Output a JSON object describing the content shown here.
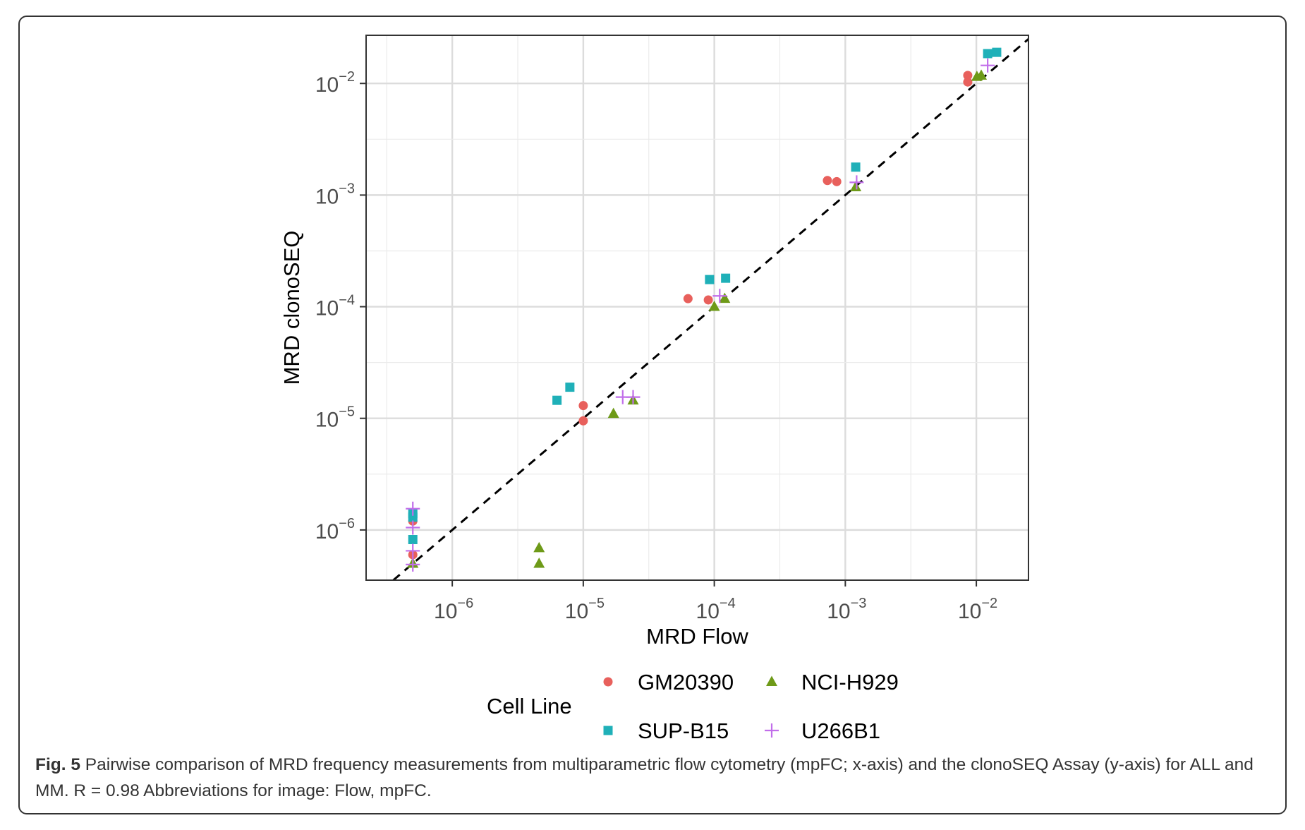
{
  "chart_data": {
    "type": "scatter",
    "xlabel": "MRD Flow",
    "ylabel": "MRD clonoSEQ",
    "x_scale": "log10",
    "y_scale": "log10",
    "xlim": [
      2.2e-07,
      0.025
    ],
    "ylim": [
      3.55e-07,
      0.027
    ],
    "x_ticks": [
      {
        "value": 1e-06,
        "base": "10",
        "exp": "−6"
      },
      {
        "value": 1e-05,
        "base": "10",
        "exp": "−5"
      },
      {
        "value": 0.0001,
        "base": "10",
        "exp": "−4"
      },
      {
        "value": 0.001,
        "base": "10",
        "exp": "−3"
      },
      {
        "value": 0.01,
        "base": "10",
        "exp": "−2"
      }
    ],
    "y_ticks": [
      {
        "value": 1e-06,
        "base": "10",
        "exp": "−6"
      },
      {
        "value": 1e-05,
        "base": "10",
        "exp": "−5"
      },
      {
        "value": 0.0001,
        "base": "10",
        "exp": "−4"
      },
      {
        "value": 0.001,
        "base": "10",
        "exp": "−3"
      },
      {
        "value": 0.01,
        "base": "10",
        "exp": "−2"
      }
    ],
    "grid": true,
    "reference_line": {
      "type": "identity",
      "style": "dashed",
      "color": "#000000"
    },
    "legend": {
      "title": "Cell Line",
      "position": "bottom"
    },
    "series": [
      {
        "name": "GM20390",
        "marker": "circle",
        "color": "#E8605C",
        "points": [
          {
            "x": 5e-07,
            "y": 1.2e-06
          },
          {
            "x": 5e-07,
            "y": 6e-07
          },
          {
            "x": 1e-05,
            "y": 1.3e-05
          },
          {
            "x": 1e-05,
            "y": 9.5e-06
          },
          {
            "x": 6.3e-05,
            "y": 0.000118
          },
          {
            "x": 9e-05,
            "y": 0.000115
          },
          {
            "x": 0.00073,
            "y": 0.00135
          },
          {
            "x": 0.00086,
            "y": 0.00132
          },
          {
            "x": 0.0086,
            "y": 0.0118
          },
          {
            "x": 0.0086,
            "y": 0.0103
          }
        ]
      },
      {
        "name": "NCI-H929",
        "marker": "triangle",
        "color": "#6E9A18",
        "points": [
          {
            "x": 5e-07,
            "y": 5e-07
          },
          {
            "x": 4.6e-06,
            "y": 6.9e-07
          },
          {
            "x": 4.6e-06,
            "y": 5e-07
          },
          {
            "x": 1.7e-05,
            "y": 1.1e-05
          },
          {
            "x": 2.4e-05,
            "y": 1.45e-05
          },
          {
            "x": 0.0001,
            "y": 0.0001
          },
          {
            "x": 0.00012,
            "y": 0.000118
          },
          {
            "x": 0.0012,
            "y": 0.00118
          },
          {
            "x": 0.0101,
            "y": 0.0115
          },
          {
            "x": 0.0109,
            "y": 0.0118
          }
        ]
      },
      {
        "name": "SUP-B15",
        "marker": "square",
        "color": "#1FB0B8",
        "points": [
          {
            "x": 5e-07,
            "y": 1.4e-06
          },
          {
            "x": 5e-07,
            "y": 1.3e-06
          },
          {
            "x": 5e-07,
            "y": 8.2e-07
          },
          {
            "x": 6.3e-06,
            "y": 1.45e-05
          },
          {
            "x": 7.9e-06,
            "y": 1.9e-05
          },
          {
            "x": 9.2e-05,
            "y": 0.000175
          },
          {
            "x": 0.000122,
            "y": 0.00018
          },
          {
            "x": 0.0012,
            "y": 0.00178
          },
          {
            "x": 0.0122,
            "y": 0.0185
          },
          {
            "x": 0.0143,
            "y": 0.019
          }
        ]
      },
      {
        "name": "U266B1",
        "marker": "plus",
        "color": "#C16EEA",
        "points": [
          {
            "x": 5e-07,
            "y": 1.55e-06
          },
          {
            "x": 5e-07,
            "y": 1.05e-06
          },
          {
            "x": 5e-07,
            "y": 6.5e-07
          },
          {
            "x": 5e-07,
            "y": 4.9e-07
          },
          {
            "x": 2e-05,
            "y": 1.55e-05
          },
          {
            "x": 2.4e-05,
            "y": 1.55e-05
          },
          {
            "x": 0.00011,
            "y": 0.000125
          },
          {
            "x": 0.00122,
            "y": 0.0013
          },
          {
            "x": 0.0122,
            "y": 0.0145
          }
        ]
      }
    ]
  },
  "caption": {
    "label": "Fig. 5",
    "text": " Pairwise comparison of MRD frequency measurements from multiparametric flow cytometry (mpFC; x-axis) and the clonoSEQ Assay (y-axis) for ALL and MM. R = 0.98 Abbreviations for image: Flow, mpFC."
  }
}
